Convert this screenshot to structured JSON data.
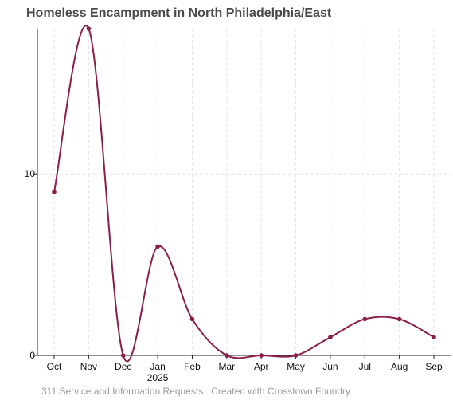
{
  "title": "Homeless Encampment in North Philadelphia/East",
  "caption": "311 Service and Information Requests . Created with Crosstown Foundry",
  "chart_data": {
    "type": "line",
    "title": "Homeless Encampment in North Philadelphia/East",
    "xlabel": "",
    "ylabel": "",
    "categories": [
      "Oct",
      "Nov",
      "Dec",
      "Jan",
      "Feb",
      "Mar",
      "Apr",
      "May",
      "Jun",
      "Jul",
      "Aug",
      "Sep"
    ],
    "year_marker": {
      "category": "Jan",
      "label": "2025"
    },
    "values": [
      9,
      18,
      0,
      6,
      2,
      0,
      0,
      0,
      1,
      2,
      2,
      1
    ],
    "yticks": [
      0,
      10
    ],
    "ylim": [
      0,
      18
    ],
    "grid": true,
    "line_color": "#8b1e4a"
  }
}
